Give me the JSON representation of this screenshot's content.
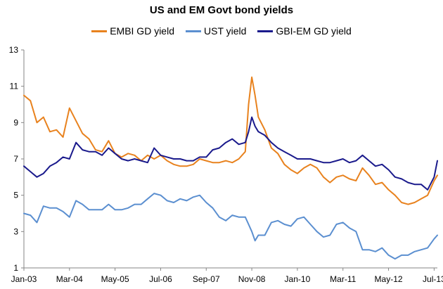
{
  "chart_data": {
    "type": "line",
    "title": "US and EM Govt bond yields",
    "xlabel": "",
    "ylabel": "",
    "ylim": [
      1,
      13
    ],
    "yticks": [
      1,
      3,
      5,
      7,
      9,
      11,
      13
    ],
    "x_tick_labels": [
      "Jan-03",
      "Mar-04",
      "May-05",
      "Jul-06",
      "Sep-07",
      "Nov-08",
      "Jan-10",
      "Mar-11",
      "May-12",
      "Jul-13"
    ],
    "x_start": "2003-01",
    "x_end": "2013-08",
    "grid": false,
    "legend_position": "top",
    "x": [
      "2003-01",
      "2003-03",
      "2003-05",
      "2003-07",
      "2003-09",
      "2003-11",
      "2004-01",
      "2004-03",
      "2004-05",
      "2004-07",
      "2004-09",
      "2004-11",
      "2005-01",
      "2005-03",
      "2005-05",
      "2005-07",
      "2005-09",
      "2005-11",
      "2006-01",
      "2006-03",
      "2006-05",
      "2006-07",
      "2006-09",
      "2006-11",
      "2007-01",
      "2007-03",
      "2007-05",
      "2007-07",
      "2007-09",
      "2007-11",
      "2008-01",
      "2008-03",
      "2008-05",
      "2008-07",
      "2008-09",
      "2008-10",
      "2008-11",
      "2008-12",
      "2009-01",
      "2009-03",
      "2009-05",
      "2009-07",
      "2009-09",
      "2009-11",
      "2010-01",
      "2010-03",
      "2010-05",
      "2010-07",
      "2010-09",
      "2010-11",
      "2011-01",
      "2011-03",
      "2011-05",
      "2011-07",
      "2011-09",
      "2011-11",
      "2012-01",
      "2012-03",
      "2012-05",
      "2012-07",
      "2012-09",
      "2012-11",
      "2013-01",
      "2013-03",
      "2013-05",
      "2013-07",
      "2013-08"
    ],
    "series": [
      {
        "name": "EMBI GD yield",
        "color": "#E8821E",
        "values": [
          10.5,
          10.2,
          9.0,
          9.3,
          8.5,
          8.6,
          8.2,
          9.8,
          9.1,
          8.4,
          8.1,
          7.5,
          7.4,
          8.0,
          7.3,
          7.1,
          7.3,
          7.2,
          6.9,
          7.2,
          7.0,
          7.2,
          6.9,
          6.7,
          6.6,
          6.6,
          6.7,
          7.0,
          6.9,
          6.8,
          6.8,
          6.9,
          6.8,
          7.0,
          7.4,
          10.0,
          11.5,
          10.5,
          9.3,
          8.6,
          7.6,
          7.3,
          6.7,
          6.4,
          6.2,
          6.5,
          6.7,
          6.5,
          6.0,
          5.7,
          6.0,
          6.1,
          5.9,
          5.8,
          6.5,
          6.1,
          5.6,
          5.7,
          5.3,
          5.0,
          4.6,
          4.5,
          4.6,
          4.8,
          5.0,
          5.8,
          6.1
        ]
      },
      {
        "name": "UST yield",
        "color": "#5B8FD0",
        "values": [
          4.0,
          3.9,
          3.5,
          4.4,
          4.3,
          4.3,
          4.1,
          3.8,
          4.7,
          4.5,
          4.2,
          4.2,
          4.2,
          4.5,
          4.2,
          4.2,
          4.3,
          4.5,
          4.5,
          4.8,
          5.1,
          5.0,
          4.7,
          4.6,
          4.8,
          4.7,
          4.9,
          5.0,
          4.6,
          4.3,
          3.8,
          3.6,
          3.9,
          3.8,
          3.8,
          3.4,
          3.0,
          2.5,
          2.8,
          2.8,
          3.5,
          3.6,
          3.4,
          3.3,
          3.7,
          3.8,
          3.4,
          3.0,
          2.7,
          2.8,
          3.4,
          3.5,
          3.2,
          3.0,
          2.0,
          2.0,
          1.9,
          2.1,
          1.7,
          1.5,
          1.7,
          1.7,
          1.9,
          2.0,
          2.1,
          2.6,
          2.8
        ]
      },
      {
        "name": "GBI-EM GD yield",
        "color": "#1A1A8C",
        "values": [
          6.6,
          6.3,
          6.0,
          6.2,
          6.6,
          6.8,
          7.1,
          7.0,
          7.9,
          7.5,
          7.4,
          7.4,
          7.2,
          7.6,
          7.3,
          7.0,
          6.9,
          7.0,
          6.9,
          6.8,
          7.6,
          7.2,
          7.1,
          7.0,
          7.0,
          6.9,
          6.9,
          7.1,
          7.1,
          7.5,
          7.6,
          7.9,
          8.1,
          7.8,
          7.9,
          8.5,
          9.3,
          8.8,
          8.5,
          8.3,
          7.9,
          7.6,
          7.4,
          7.2,
          7.0,
          7.0,
          7.0,
          6.9,
          6.8,
          6.8,
          6.9,
          7.0,
          6.8,
          6.9,
          7.2,
          6.9,
          6.6,
          6.7,
          6.4,
          6.0,
          5.9,
          5.7,
          5.6,
          5.6,
          5.3,
          6.0,
          6.9
        ]
      }
    ]
  }
}
